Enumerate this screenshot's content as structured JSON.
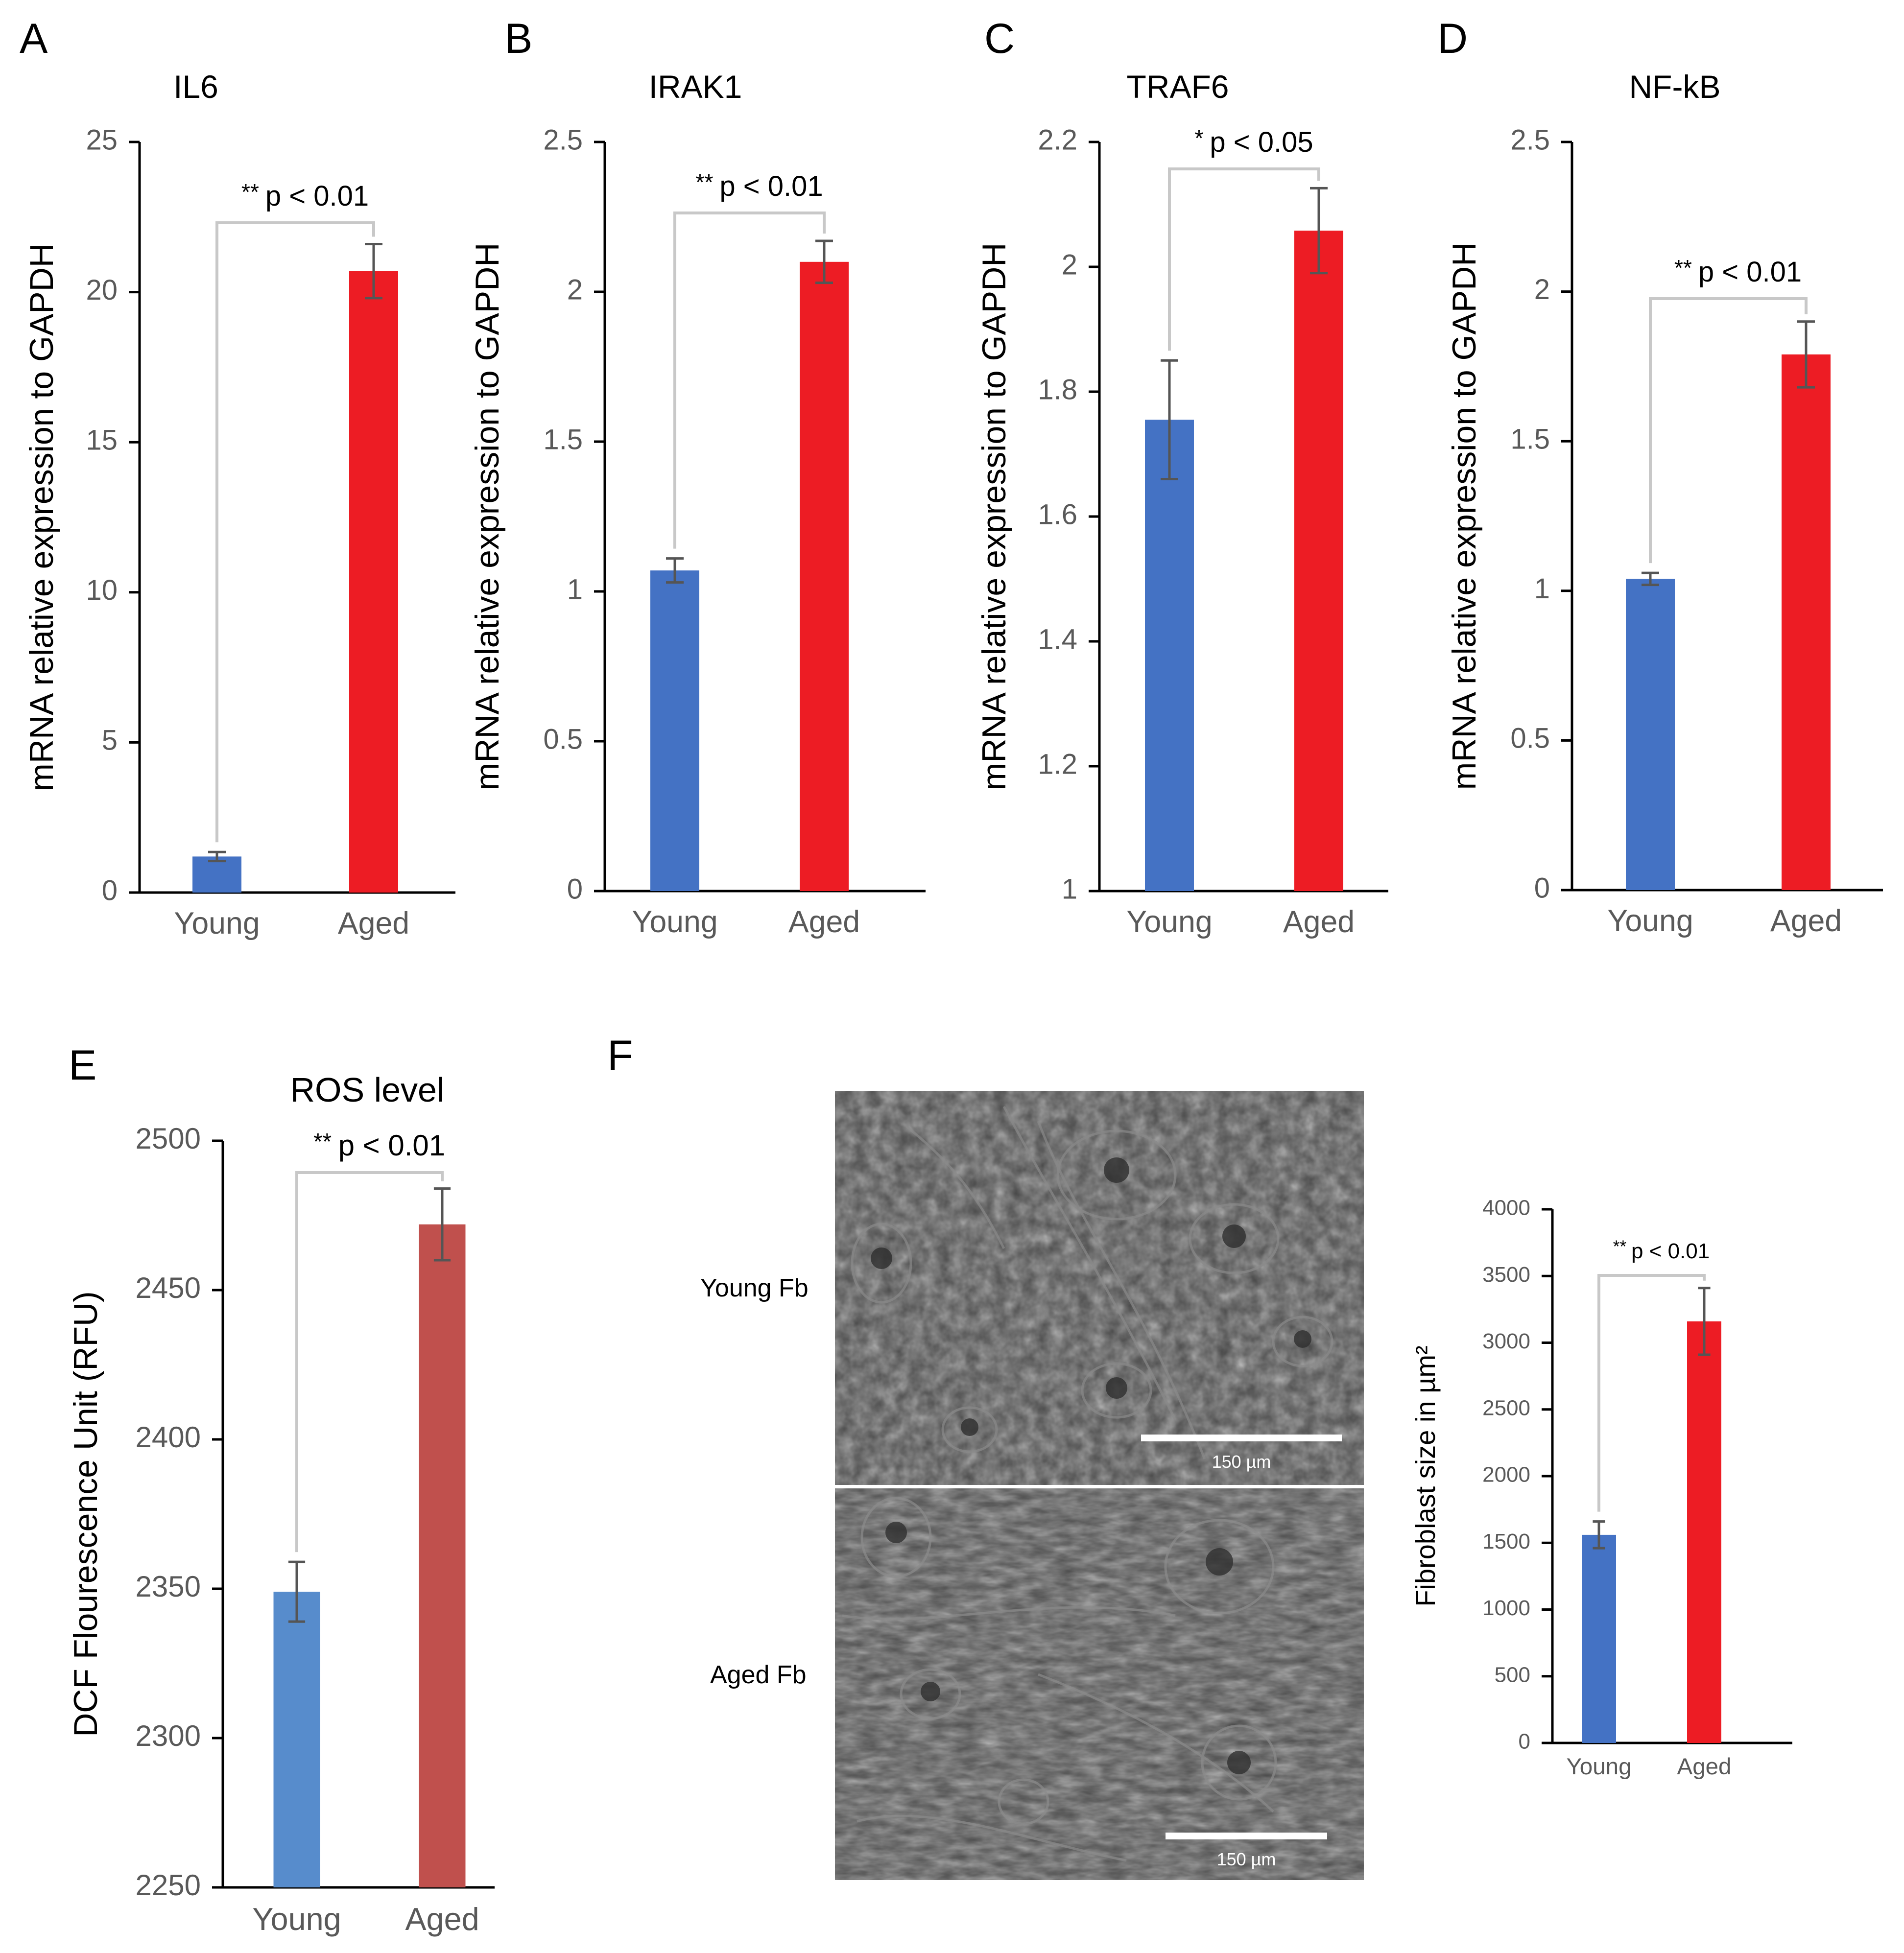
{
  "panels": [
    {
      "letter": "A",
      "title": "IL6"
    },
    {
      "letter": "B",
      "title": "IRAK1"
    },
    {
      "letter": "C",
      "title": "TRAF6"
    },
    {
      "letter": "D",
      "title": "NF-kB"
    },
    {
      "letter": "E",
      "title": "ROS level"
    },
    {
      "letter": "F",
      "title": ""
    }
  ],
  "micrographs": {
    "young_label": "Young Fb",
    "aged_label": "Aged Fb",
    "scale_bar_text": "150 µm"
  },
  "colors": {
    "young": "#4472C4",
    "aged": "#ED1C24",
    "young_ros": "#578CCC",
    "aged_ros": "#C0504D",
    "error_bar": "#555555",
    "bracket": "#C8C8C8"
  },
  "chart_data": [
    {
      "type": "bar",
      "title": "IL6",
      "categories": [
        "Young",
        "Aged"
      ],
      "values": [
        1.2,
        20.7
      ],
      "errors": [
        0.15,
        0.9
      ],
      "ylabel": "mRNA relative expression to GAPDH",
      "ylim": [
        0,
        25
      ],
      "yticks": [
        "0",
        "5",
        "10",
        "15",
        "20",
        "25"
      ],
      "significance": {
        "stars": "**",
        "p_text": "p < 0.01"
      }
    },
    {
      "type": "bar",
      "title": "IRAK1",
      "categories": [
        "Young",
        "Aged"
      ],
      "values": [
        1.07,
        2.1
      ],
      "errors": [
        0.04,
        0.07
      ],
      "ylabel": "mRNA relative expression to GAPDH",
      "ylim": [
        0,
        2.5
      ],
      "yticks": [
        "0",
        "0.5",
        "1",
        "1.5",
        "2",
        "2.5"
      ],
      "significance": {
        "stars": "**",
        "p_text": "p < 0.01"
      }
    },
    {
      "type": "bar",
      "title": "TRAF6",
      "categories": [
        "Young",
        "Aged"
      ],
      "values": [
        1.755,
        2.058
      ],
      "errors": [
        0.095,
        0.068
      ],
      "ylabel": "mRNA relative expression to GAPDH",
      "ylim": [
        1,
        2.2
      ],
      "yticks": [
        "1",
        "1.2",
        "1.4",
        "1.6",
        "1.8",
        "2",
        "2.2"
      ],
      "significance": {
        "stars": "*",
        "p_text": "p < 0.05"
      }
    },
    {
      "type": "bar",
      "title": "NF-kB",
      "categories": [
        "Young",
        "Aged"
      ],
      "values": [
        1.04,
        1.79
      ],
      "errors": [
        0.02,
        0.11
      ],
      "ylabel": "mRNA relative expression to GAPDH",
      "ylim": [
        0,
        2.5
      ],
      "yticks": [
        "0",
        "0.5",
        "1",
        "1.5",
        "2",
        "2.5"
      ],
      "significance": {
        "stars": "**",
        "p_text": "p < 0.01"
      }
    },
    {
      "type": "bar",
      "title": "ROS level",
      "categories": [
        "Young",
        "Aged"
      ],
      "values": [
        2349,
        2472
      ],
      "errors": [
        10,
        12
      ],
      "ylabel": "DCF Flourescence Unit (RFU)",
      "ylim": [
        2250,
        2500
      ],
      "yticks": [
        "2250",
        "2300",
        "2350",
        "2400",
        "2450",
        "2500"
      ],
      "significance": {
        "stars": "**",
        "p_text": "p < 0.01"
      }
    },
    {
      "type": "bar",
      "title": "",
      "categories": [
        "Young",
        "Aged"
      ],
      "values": [
        1560,
        3160
      ],
      "errors": [
        100,
        250
      ],
      "ylabel": "Fibroblast size in µm²",
      "ylim": [
        0,
        4000
      ],
      "yticks": [
        "0",
        "500",
        "1000",
        "1500",
        "2000",
        "2500",
        "3000",
        "3500",
        "4000"
      ],
      "significance": {
        "stars": "**",
        "p_text": "p < 0.01"
      }
    }
  ]
}
